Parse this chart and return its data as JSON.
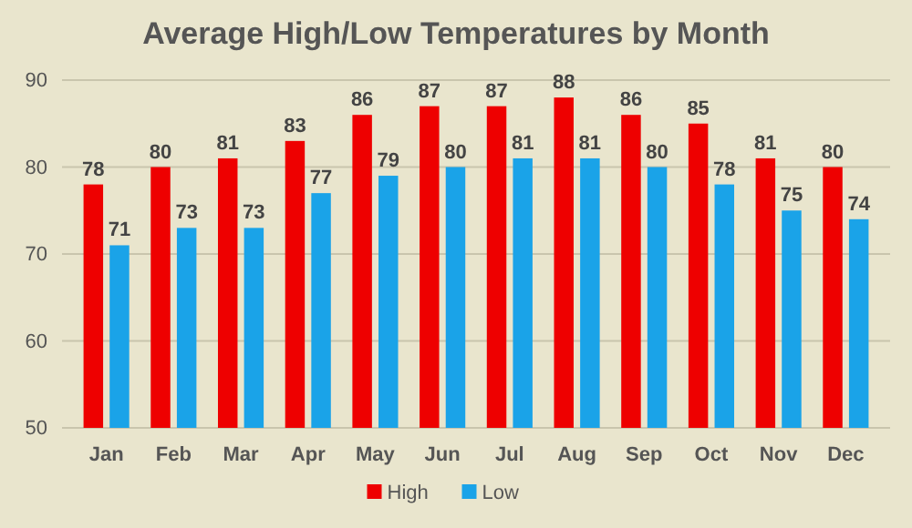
{
  "chart_data": {
    "type": "bar",
    "title": "Average High/Low Temperatures by Month",
    "categories": [
      "Jan",
      "Feb",
      "Mar",
      "Apr",
      "May",
      "Jun",
      "Jul",
      "Aug",
      "Sep",
      "Oct",
      "Nov",
      "Dec"
    ],
    "series": [
      {
        "name": "High",
        "color": "#ee0000",
        "values": [
          78,
          80,
          81,
          83,
          86,
          87,
          87,
          88,
          86,
          85,
          81,
          80
        ]
      },
      {
        "name": "Low",
        "color": "#1aa3e8",
        "values": [
          71,
          73,
          73,
          77,
          79,
          80,
          81,
          81,
          80,
          78,
          75,
          74
        ]
      }
    ],
    "ylim": [
      50,
      90
    ],
    "yticks": [
      50,
      60,
      70,
      80,
      90
    ],
    "grid": "y",
    "legend": "bottom",
    "data_labels": true
  }
}
